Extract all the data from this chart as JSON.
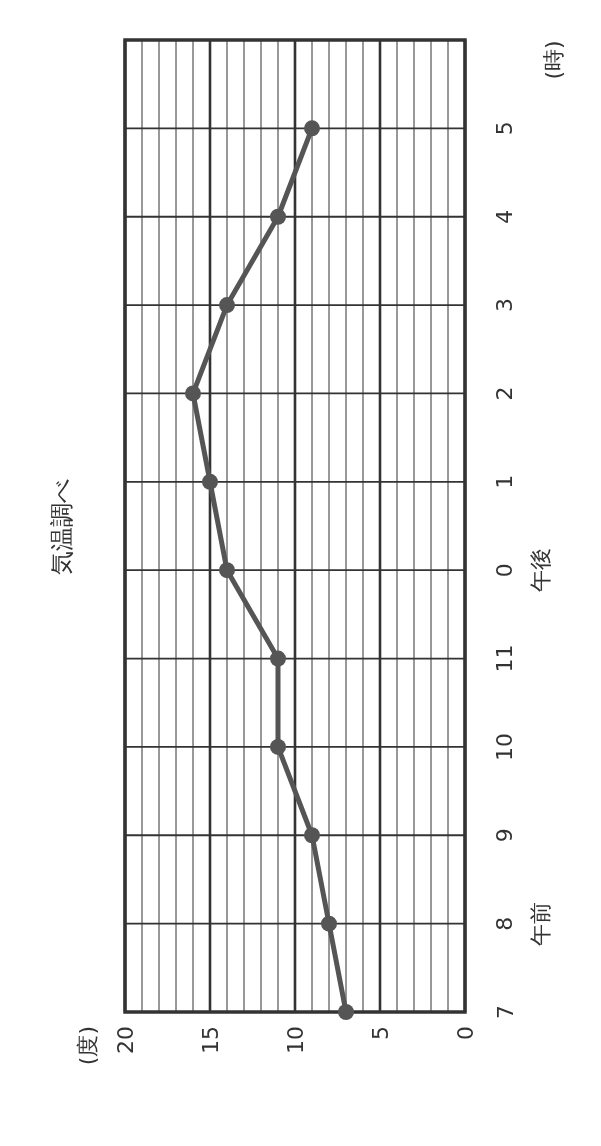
{
  "chart_data": {
    "type": "line",
    "orientation": "horizontal",
    "title": "気温調べ",
    "ylabel": "(時)",
    "categories": [
      null,
      "5",
      "4",
      "3",
      "2",
      "1",
      "0",
      "11",
      "10",
      "9",
      "8",
      "7"
    ],
    "series": [
      {
        "color": "#555555",
        "values": [
          null,
          9,
          11,
          14,
          16,
          15,
          14,
          11,
          11,
          9,
          8,
          7
        ]
      }
    ],
    "xlim": [
      20,
      0
    ],
    "xticks": [
      0,
      {
        "value": 1,
        "label": null
      },
      {
        "value": 2,
        "label": null
      },
      {
        "value": 3,
        "label": null
      },
      {
        "value": 4,
        "label": null
      },
      5,
      {
        "value": 6,
        "label": null
      },
      {
        "value": 7,
        "label": null
      },
      {
        "value": 8,
        "label": null
      },
      {
        "value": 9,
        "label": null
      },
      10,
      {
        "value": 11,
        "label": null
      },
      {
        "value": 12,
        "label": null
      },
      {
        "value": 13,
        "label": null
      },
      {
        "value": 14,
        "label": null
      },
      15,
      {
        "value": 16,
        "label": null
      },
      {
        "value": 17,
        "label": null
      },
      {
        "value": 18,
        "label": null
      },
      {
        "value": 19,
        "label": null
      },
      20
    ],
    "annotations": [
      "午前",
      "午後",
      "(度)"
    ],
    "grid": true,
    "marker": "circle",
    "line_style": "solid"
  }
}
